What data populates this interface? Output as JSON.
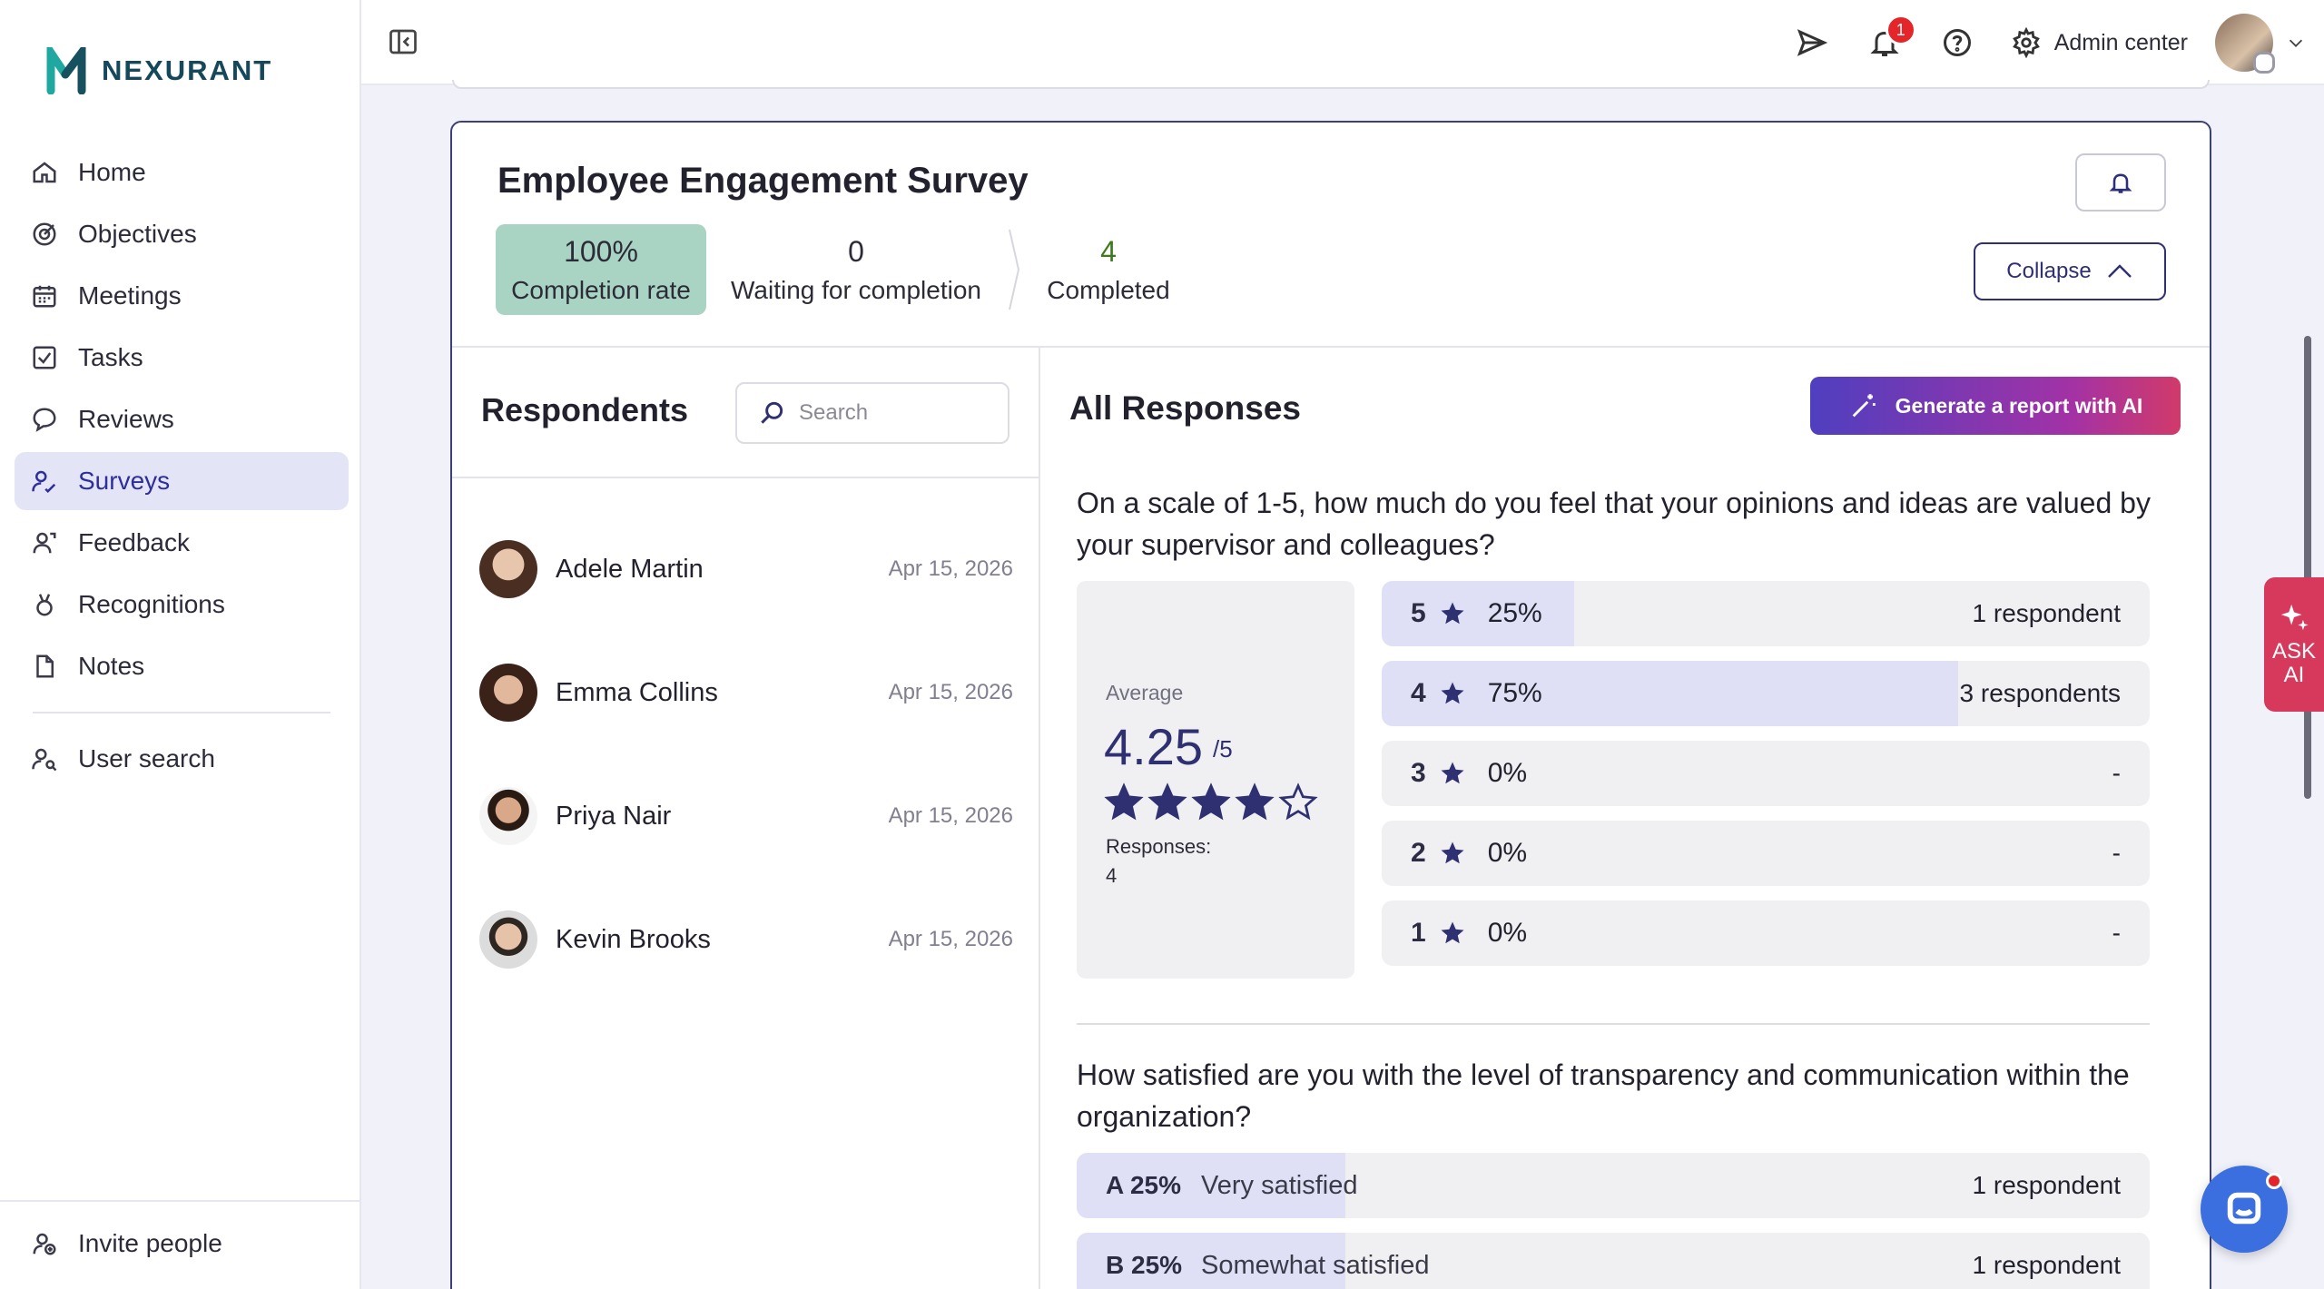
{
  "brand": {
    "name": "NEXURANT"
  },
  "sidebar": {
    "items": [
      {
        "label": "Home",
        "icon": "home-icon"
      },
      {
        "label": "Objectives",
        "icon": "target-icon"
      },
      {
        "label": "Meetings",
        "icon": "calendar-icon"
      },
      {
        "label": "Tasks",
        "icon": "checkbox-icon"
      },
      {
        "label": "Reviews",
        "icon": "chat-bubble-icon"
      },
      {
        "label": "Surveys",
        "icon": "survey-icon",
        "active": true
      },
      {
        "label": "Feedback",
        "icon": "person-feedback-icon"
      },
      {
        "label": "Recognitions",
        "icon": "medal-icon"
      },
      {
        "label": "Notes",
        "icon": "document-icon"
      }
    ],
    "user_search": "User search",
    "invite": "Invite people"
  },
  "topbar": {
    "notification_count": "1",
    "admin_center": "Admin center"
  },
  "survey": {
    "title": "Employee Engagement Survey",
    "stats": {
      "rate_value": "100%",
      "rate_label": "Completion rate",
      "waiting_value": "0",
      "waiting_label": "Waiting for completion",
      "completed_value": "4",
      "completed_label": "Completed"
    },
    "collapse_label": "Collapse"
  },
  "respondents": {
    "title": "Respondents",
    "search_placeholder": "Search",
    "list": [
      {
        "name": "Adele Martin",
        "date": "Apr 15, 2026"
      },
      {
        "name": "Emma Collins",
        "date": "Apr 15, 2026"
      },
      {
        "name": "Priya Nair",
        "date": "Apr 15, 2026"
      },
      {
        "name": "Kevin Brooks",
        "date": "Apr 15, 2026"
      }
    ]
  },
  "responses": {
    "title": "All Responses",
    "generate_label": "Generate a report with AI",
    "q1": {
      "text": "On a scale of 1-5, how much do you feel that your opinions and ideas are valued by your supervisor and colleagues?",
      "average_label": "Average",
      "average_value": "4.25",
      "average_max": "/5",
      "stars_filled": 4,
      "stars_total": 5,
      "responses_label": "Responses:",
      "responses_count": "4",
      "ratings": [
        {
          "stars": "5",
          "percent": "25%",
          "fraction": 0.25,
          "count": "1 respondent"
        },
        {
          "stars": "4",
          "percent": "75%",
          "fraction": 0.75,
          "count": "3 respondents"
        },
        {
          "stars": "3",
          "percent": "0%",
          "fraction": 0,
          "count": "-"
        },
        {
          "stars": "2",
          "percent": "0%",
          "fraction": 0,
          "count": "-"
        },
        {
          "stars": "1",
          "percent": "0%",
          "fraction": 0,
          "count": "-"
        }
      ]
    },
    "q2": {
      "text": "How satisfied are you with the level of transparency and communication within the organization?",
      "choices": [
        {
          "letter": "A 25%",
          "label": "Very satisfied",
          "fraction": 0.25,
          "count": "1 respondent"
        },
        {
          "letter": "B 25%",
          "label": "Somewhat satisfied",
          "fraction": 0.25,
          "count": "1 respondent"
        }
      ]
    }
  },
  "ask_ai": {
    "line1": "ASK",
    "line2": "AI"
  },
  "colors": {
    "accent": "#2e3072",
    "active_nav": "#e3e4f6",
    "completion": "#a9d4c3",
    "ask_ai": "#d6395b"
  }
}
